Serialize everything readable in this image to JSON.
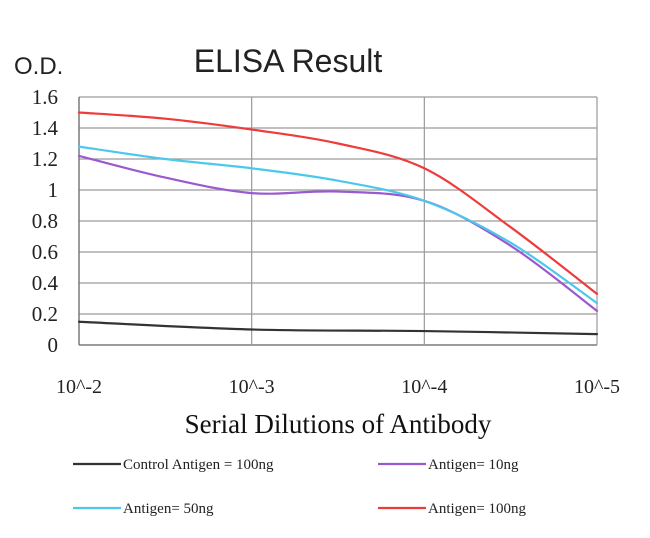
{
  "chart_data": {
    "type": "line",
    "title": "ELISA Result",
    "ylabel": "O.D.",
    "xlabel": "Serial Dilutions of Antibody",
    "ylim": [
      0,
      1.6
    ],
    "yticks": [
      "0",
      "0.2",
      "0.4",
      "0.6",
      "0.8",
      "1",
      "1.2",
      "1.4",
      "1.6"
    ],
    "xticks": [
      "10^-2",
      "10^-3",
      "10^-4",
      "10^-5"
    ],
    "grid": true,
    "legend_position": "bottom",
    "series": [
      {
        "name": "Control Antigen = 100ng",
        "color": "#333333",
        "x": [
          0,
          1,
          2,
          3
        ],
        "values": [
          0.15,
          0.1,
          0.09,
          0.07
        ]
      },
      {
        "name": "Antigen= 10ng",
        "color": "#9b59d0",
        "x": [
          0,
          0.5,
          1,
          1.5,
          2,
          2.5,
          3
        ],
        "values": [
          1.22,
          1.08,
          0.98,
          0.99,
          0.93,
          0.64,
          0.22
        ]
      },
      {
        "name": "Antigen= 50ng",
        "color": "#4cc8ec",
        "x": [
          0,
          0.5,
          1,
          1.5,
          2,
          2.5,
          3
        ],
        "values": [
          1.28,
          1.2,
          1.14,
          1.06,
          0.93,
          0.66,
          0.27
        ]
      },
      {
        "name": "Antigen= 100ng",
        "color": "#ee3b3b",
        "x": [
          0,
          0.5,
          1,
          1.5,
          2,
          2.5,
          3
        ],
        "values": [
          1.5,
          1.46,
          1.39,
          1.3,
          1.14,
          0.76,
          0.33
        ]
      }
    ]
  }
}
